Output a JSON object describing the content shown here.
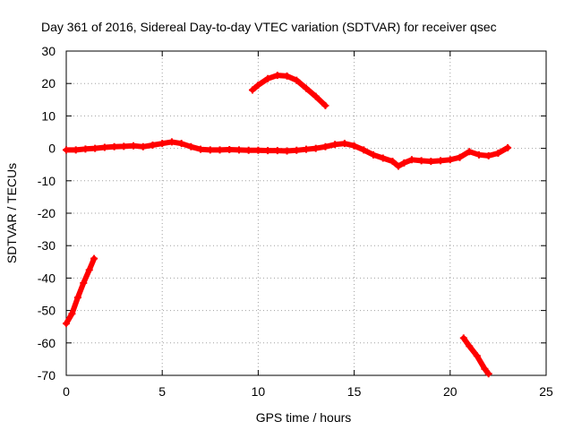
{
  "chart_data": {
    "type": "scatter",
    "title": "Day 361 of 2016, Sidereal Day-to-day VTEC variation (SDTVAR) for receiver qsec",
    "xlabel": "GPS time / hours",
    "ylabel": "SDTVAR / TECUs",
    "xlim": [
      0,
      25
    ],
    "ylim": [
      -70,
      30
    ],
    "xticks": [
      0,
      5,
      10,
      15,
      20,
      25
    ],
    "yticks": [
      -70,
      -60,
      -50,
      -40,
      -30,
      -20,
      -10,
      0,
      10,
      20,
      30
    ],
    "grid": true,
    "legend": "none",
    "series": [
      {
        "name": "main arc",
        "color": "#ff0000",
        "points": [
          [
            0,
            -0.5
          ],
          [
            0.5,
            -0.5
          ],
          [
            1,
            -0.2
          ],
          [
            1.5,
            0
          ],
          [
            2,
            0.3
          ],
          [
            2.5,
            0.5
          ],
          [
            3,
            0.6
          ],
          [
            3.5,
            0.8
          ],
          [
            4,
            0.5
          ],
          [
            4.5,
            1.0
          ],
          [
            5,
            1.5
          ],
          [
            5.5,
            2.0
          ],
          [
            6,
            1.5
          ],
          [
            6.5,
            0.5
          ],
          [
            7,
            -0.3
          ],
          [
            7.5,
            -0.5
          ],
          [
            8,
            -0.5
          ],
          [
            8.5,
            -0.4
          ],
          [
            9,
            -0.5
          ],
          [
            9.5,
            -0.6
          ],
          [
            10,
            -0.6
          ],
          [
            10.5,
            -0.7
          ],
          [
            11,
            -0.7
          ],
          [
            11.5,
            -0.8
          ],
          [
            12,
            -0.6
          ],
          [
            12.5,
            -0.3
          ],
          [
            13,
            0
          ],
          [
            13.5,
            0.5
          ],
          [
            14,
            1.2
          ],
          [
            14.5,
            1.5
          ],
          [
            15,
            0.8
          ],
          [
            15.5,
            -0.5
          ],
          [
            16,
            -2.0
          ],
          [
            16.5,
            -3.0
          ],
          [
            17,
            -4.0
          ],
          [
            17.3,
            -5.5
          ],
          [
            17.6,
            -4.5
          ],
          [
            18,
            -3.5
          ],
          [
            18.5,
            -3.8
          ],
          [
            19,
            -4.0
          ],
          [
            19.5,
            -3.8
          ],
          [
            20,
            -3.5
          ],
          [
            20.5,
            -2.8
          ],
          [
            21,
            -1.0
          ],
          [
            21.5,
            -2.0
          ],
          [
            22,
            -2.3
          ],
          [
            22.5,
            -1.5
          ],
          [
            23,
            0.2
          ]
        ]
      },
      {
        "name": "arc 2",
        "color": "#ff0000",
        "points": [
          [
            9.7,
            18
          ],
          [
            10,
            19.5
          ],
          [
            10.5,
            21.5
          ],
          [
            11,
            22.5
          ],
          [
            11.5,
            22.3
          ],
          [
            12,
            21
          ],
          [
            12.5,
            18.5
          ],
          [
            13,
            16
          ],
          [
            13.5,
            13.2
          ]
        ]
      },
      {
        "name": "arc 3",
        "color": "#ff0000",
        "points": [
          [
            0,
            -54
          ],
          [
            0.3,
            -51
          ],
          [
            0.6,
            -46
          ],
          [
            0.9,
            -41.5
          ],
          [
            1.2,
            -37.5
          ],
          [
            1.45,
            -34
          ]
        ]
      },
      {
        "name": "arc 4",
        "color": "#ff0000",
        "points": [
          [
            20.7,
            -58.5
          ],
          [
            21,
            -61
          ],
          [
            21.4,
            -64
          ],
          [
            21.8,
            -68
          ],
          [
            22,
            -69.5
          ]
        ]
      }
    ]
  }
}
